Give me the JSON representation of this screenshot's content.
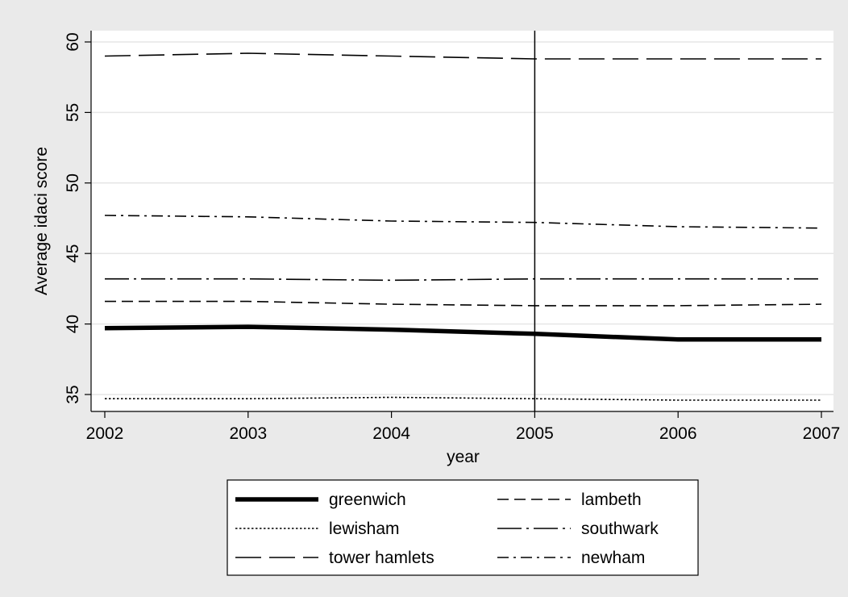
{
  "chart_data": {
    "type": "line",
    "title": "",
    "xlabel": "year",
    "ylabel": "Average idaci score",
    "x": [
      2002,
      2003,
      2004,
      2005,
      2006,
      2007
    ],
    "xlim": [
      2002,
      2007
    ],
    "ylim": [
      33.5,
      60.8
    ],
    "xticks": [
      2002,
      2003,
      2004,
      2005,
      2006,
      2007
    ],
    "yticks": [
      35,
      40,
      45,
      50,
      55,
      60
    ],
    "reference_line_x": 2005,
    "grid": "horizontal",
    "legend_position": "bottom",
    "legend_columns": 2,
    "series": [
      {
        "name": "greenwich",
        "values": [
          39.7,
          39.8,
          39.6,
          39.3,
          38.9,
          38.9
        ],
        "style": "thick-solid",
        "color": "#000000"
      },
      {
        "name": "lambeth",
        "values": [
          41.6,
          41.6,
          41.4,
          41.3,
          41.3,
          41.4
        ],
        "style": "dash",
        "color": "#000000"
      },
      {
        "name": "lewisham",
        "values": [
          34.7,
          34.7,
          34.8,
          34.7,
          34.6,
          34.6
        ],
        "style": "dot",
        "color": "#000000"
      },
      {
        "name": "southwark",
        "values": [
          43.2,
          43.2,
          43.1,
          43.2,
          43.2,
          43.2
        ],
        "style": "long-dash-dot",
        "color": "#000000"
      },
      {
        "name": "tower hamlets",
        "values": [
          59.0,
          59.2,
          59.0,
          58.8,
          58.8,
          58.8
        ],
        "style": "long-dash",
        "color": "#000000"
      },
      {
        "name": "newham",
        "values": [
          47.7,
          47.6,
          47.3,
          47.2,
          46.9,
          46.8
        ],
        "style": "short-dash-dot",
        "color": "#000000"
      }
    ]
  },
  "colors": {
    "outer_background": "#eaeaea",
    "plot_background": "#ffffff",
    "grid": "#e6e6e6",
    "ink": "#000000"
  }
}
